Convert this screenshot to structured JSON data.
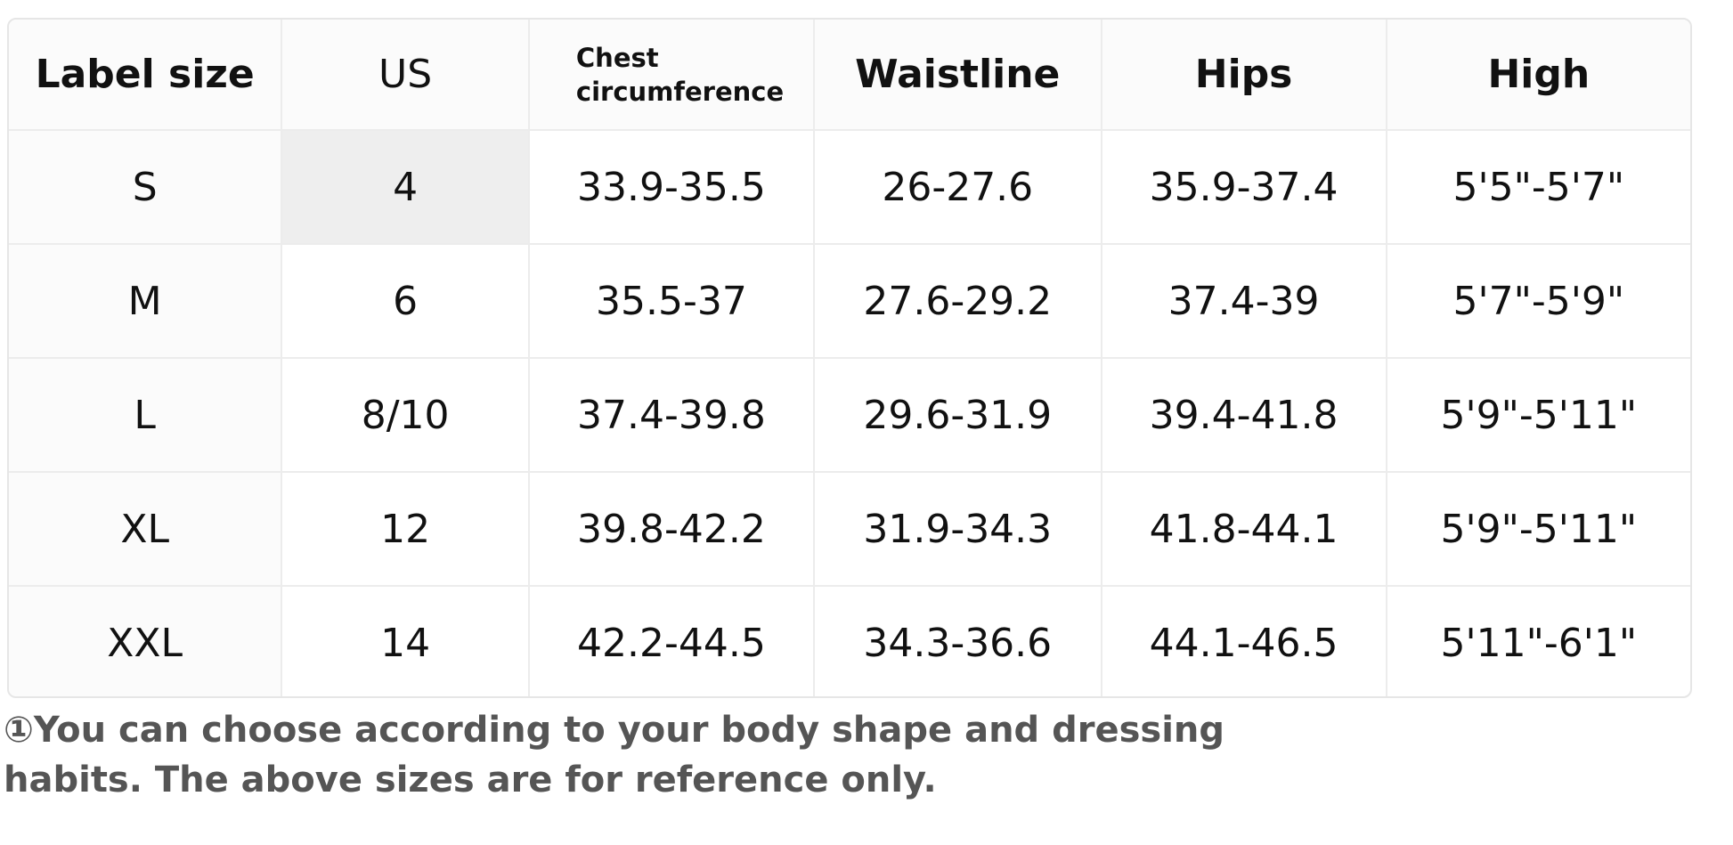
{
  "table": {
    "headers": {
      "label_size": "Label size",
      "us": "US",
      "chest": "Chest circumference",
      "waistline": "Waistline",
      "hips": "Hips",
      "high": "High"
    },
    "rows": [
      {
        "label": "S",
        "us": "4",
        "chest": "33.9-35.5",
        "waist": "26-27.6",
        "hips": "35.9-37.4",
        "high": "5'5\"-5'7\""
      },
      {
        "label": "M",
        "us": "6",
        "chest": "35.5-37",
        "waist": "27.6-29.2",
        "hips": "37.4-39",
        "high": "5'7\"-5'9\""
      },
      {
        "label": "L",
        "us": "8/10",
        "chest": "37.4-39.8",
        "waist": "29.6-31.9",
        "hips": "39.4-41.8",
        "high": "5'9\"-5'11\""
      },
      {
        "label": "XL",
        "us": "12",
        "chest": "39.8-42.2",
        "waist": "31.9-34.3",
        "hips": "41.8-44.1",
        "high": "5'9\"-5'11\""
      },
      {
        "label": "XXL",
        "us": "14",
        "chest": "42.2-44.5",
        "waist": "34.3-36.6",
        "hips": "44.1-46.5",
        "high": "5'11\"-6'1\""
      }
    ]
  },
  "footnote": {
    "text": "①You can choose according to your body shape and dressing habits. The above sizes are for reference only."
  },
  "colors": {
    "header_bg": "#fbfbfb",
    "highlight_cell": "#eeeeee",
    "border": "#ececec",
    "footnote_text": "#555555"
  }
}
